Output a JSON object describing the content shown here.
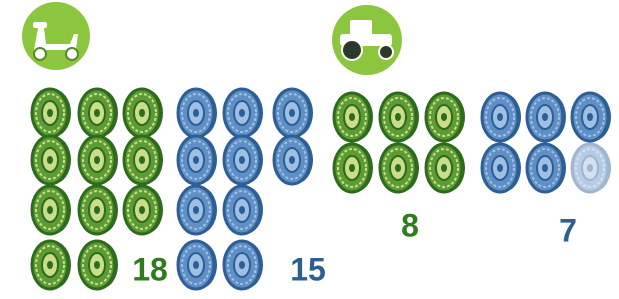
{
  "groups": [
    {
      "values": [
        18,
        15
      ]
    },
    {
      "values": [
        8,
        7
      ]
    }
  ]
}
